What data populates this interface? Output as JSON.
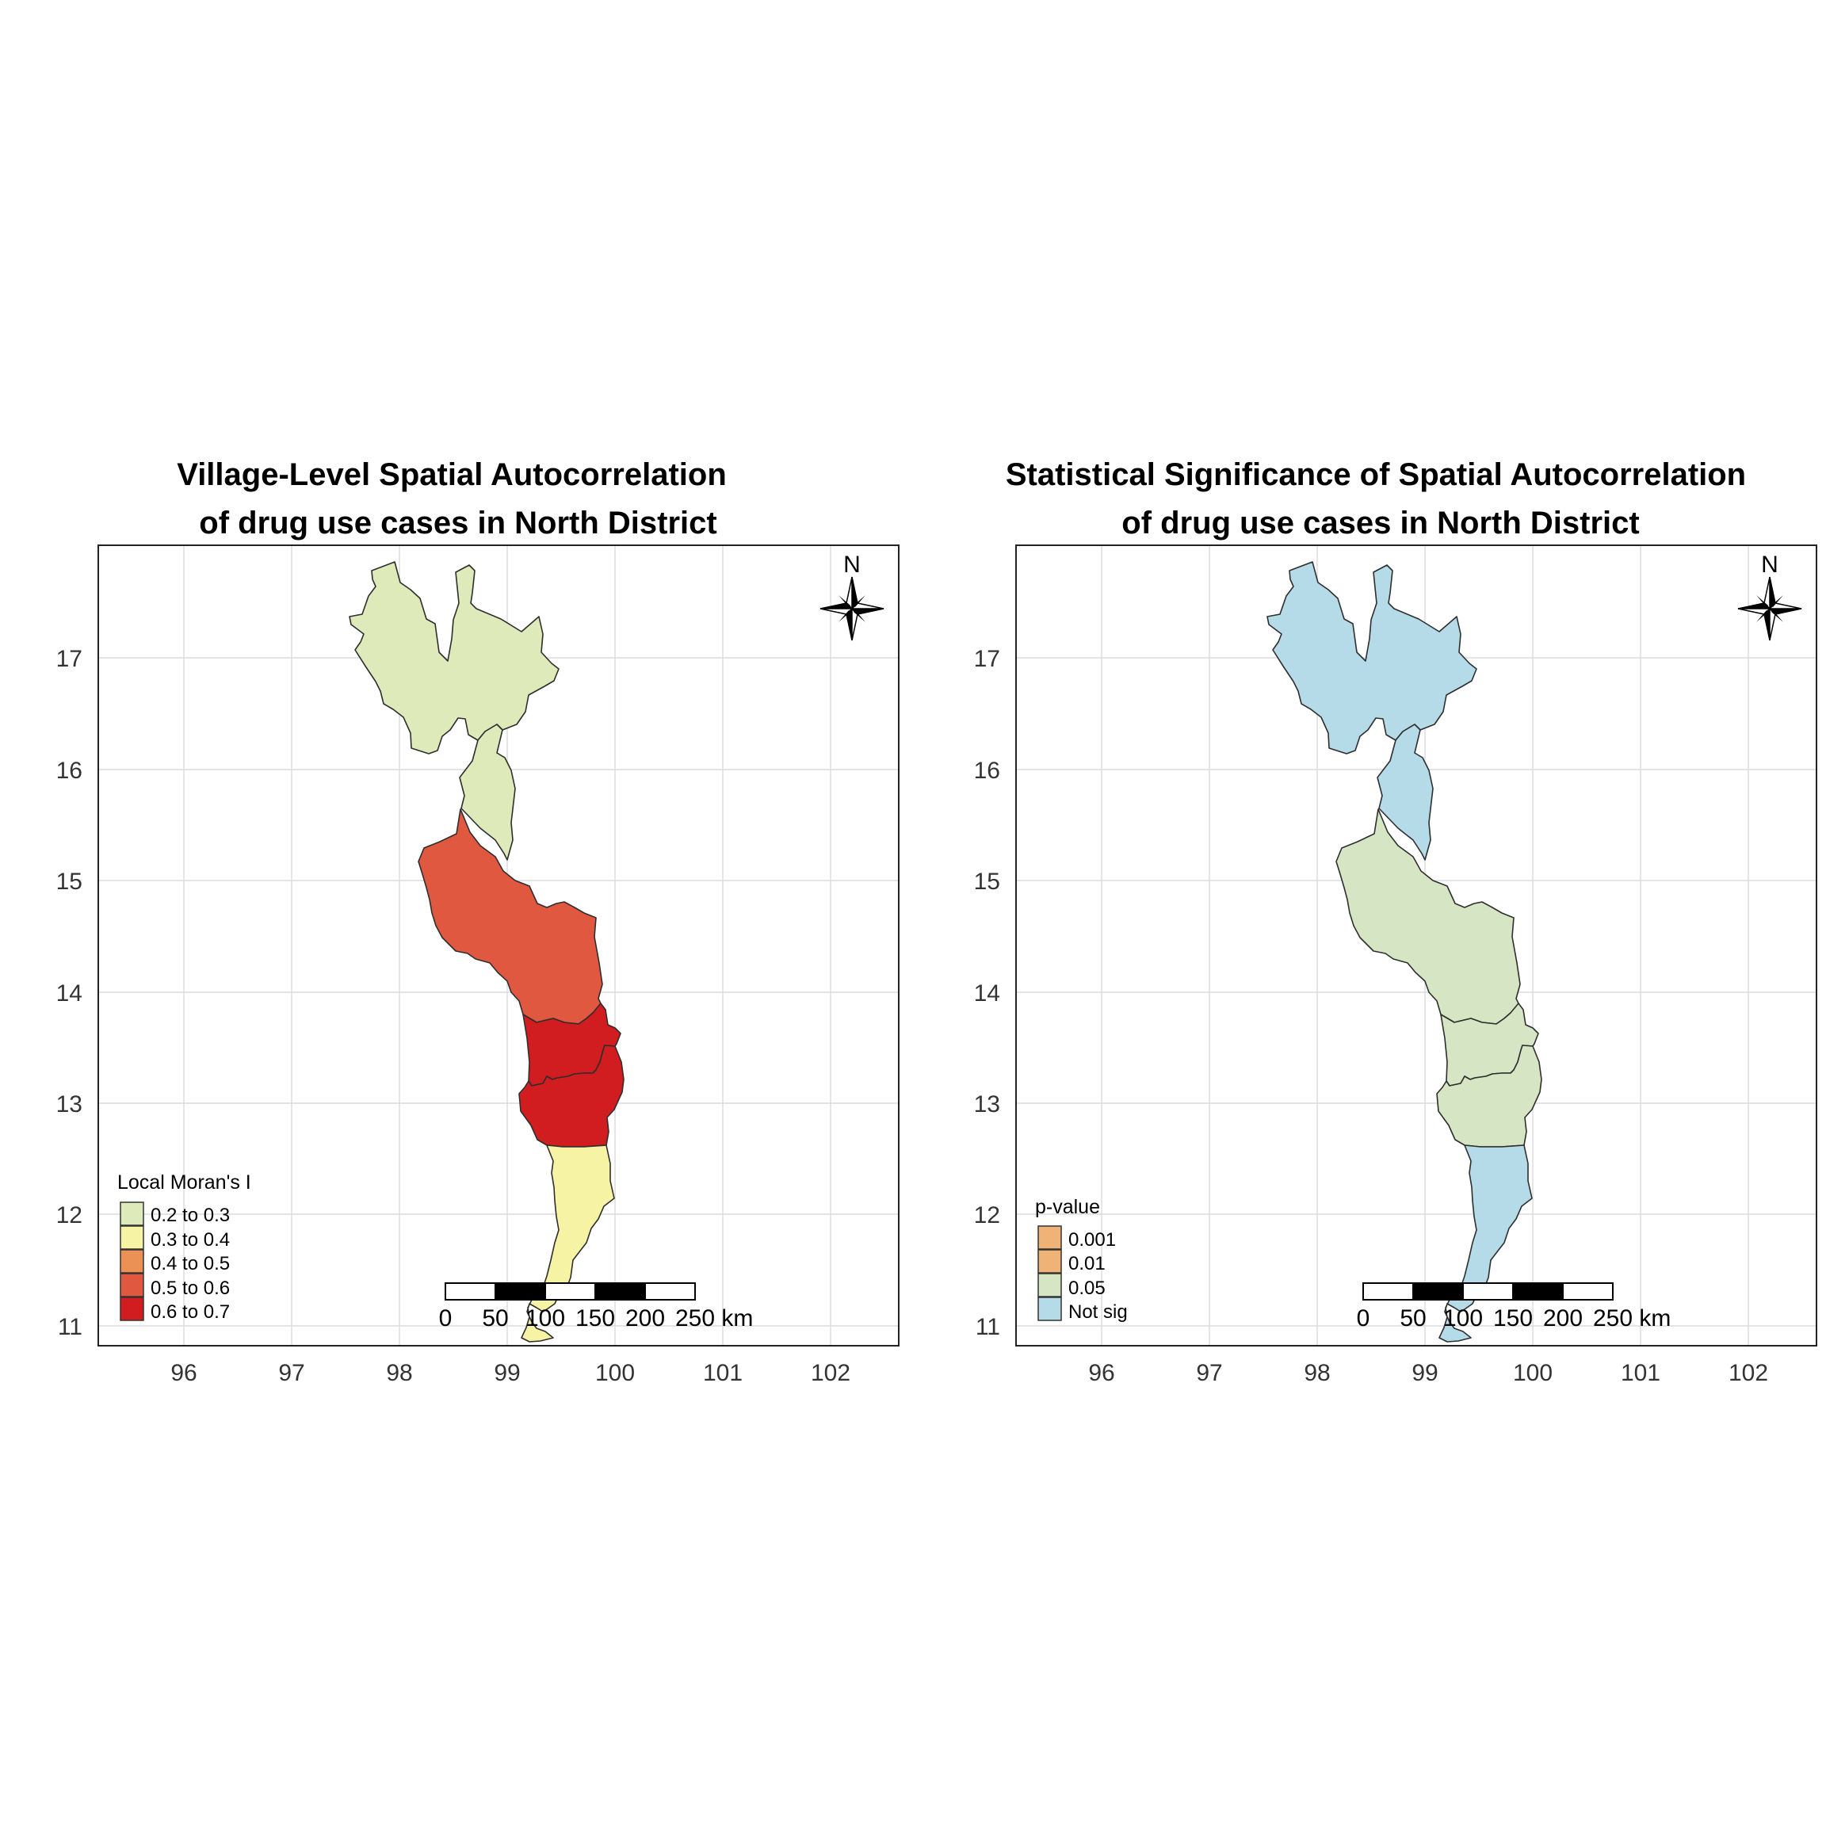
{
  "maps": [
    {
      "title_lines": [
        "Village-Level Spatial Autocorrelation",
        "of drug use cases in North District"
      ],
      "x_ticks": [
        "96",
        "97",
        "98",
        "99",
        "100",
        "101",
        "102"
      ],
      "y_ticks": [
        "17",
        "16",
        "15",
        "14",
        "13",
        "12",
        "11"
      ],
      "x_range": [
        95.2,
        102.65
      ],
      "y_range": [
        10.8,
        17.95
      ],
      "legend": {
        "title": "Local Moran's I",
        "items": [
          {
            "label": "0.2 to 0.3",
            "color": "#dfeabb"
          },
          {
            "label": "0.3 to 0.4",
            "color": "#f7f3a4"
          },
          {
            "label": "0.4 to 0.5",
            "color": "#ec9156"
          },
          {
            "label": "0.5 to 0.6",
            "color": "#e05840"
          },
          {
            "label": "0.6 to 0.7",
            "color": "#d11d20"
          }
        ]
      },
      "regions": [
        {
          "name": "north",
          "class": "0.2 to 0.3",
          "color": "#dfeabb"
        },
        {
          "name": "upper-middle",
          "class": "0.2 to 0.3",
          "color": "#dfeabb"
        },
        {
          "name": "central",
          "class": "0.5 to 0.6",
          "color": "#e05840"
        },
        {
          "name": "south-central-1",
          "class": "0.6 to 0.7",
          "color": "#d11d20"
        },
        {
          "name": "south-central-2",
          "class": "0.6 to 0.7",
          "color": "#d11d20"
        },
        {
          "name": "south",
          "class": "0.3 to 0.4",
          "color": "#f7f3a4"
        }
      ]
    },
    {
      "title_lines": [
        "Statistical Significance of Spatial Autocorrelation",
        "of drug use cases in North District"
      ],
      "x_ticks": [
        "96",
        "97",
        "98",
        "99",
        "100",
        "101",
        "102"
      ],
      "y_ticks": [
        "17",
        "16",
        "15",
        "14",
        "13",
        "12",
        "11"
      ],
      "x_range": [
        95.2,
        102.65
      ],
      "y_range": [
        10.8,
        17.95
      ],
      "legend": {
        "title": "p-value",
        "items": [
          {
            "label": "0.001",
            "color": "#f0b377"
          },
          {
            "label": "0.01",
            "color": "#f0b377"
          },
          {
            "label": "0.05",
            "color": "#d6e6c4"
          },
          {
            "label": "Not sig",
            "color": "#b5dbe8"
          }
        ]
      },
      "regions": [
        {
          "name": "north",
          "class": "Not sig",
          "color": "#b5dbe8"
        },
        {
          "name": "upper-middle",
          "class": "Not sig",
          "color": "#b5dbe8"
        },
        {
          "name": "central",
          "class": "0.05",
          "color": "#d6e6c4"
        },
        {
          "name": "south-central-1",
          "class": "0.05",
          "color": "#d6e6c4"
        },
        {
          "name": "south-central-2",
          "class": "0.05",
          "color": "#d6e6c4"
        },
        {
          "name": "south",
          "class": "Not sig",
          "color": "#b5dbe8"
        }
      ]
    }
  ],
  "scale_bar": {
    "labels": [
      "0",
      "50",
      "100",
      "150",
      "200",
      "250 km"
    ]
  },
  "north_arrow": {
    "label": "N"
  }
}
